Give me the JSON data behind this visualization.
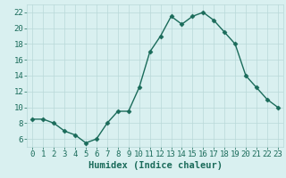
{
  "x": [
    0,
    1,
    2,
    3,
    4,
    5,
    6,
    7,
    8,
    9,
    10,
    11,
    12,
    13,
    14,
    15,
    16,
    17,
    18,
    19,
    20,
    21,
    22,
    23
  ],
  "y": [
    8.5,
    8.5,
    8.0,
    7.0,
    6.5,
    5.5,
    6.0,
    8.0,
    9.5,
    9.5,
    12.5,
    17.0,
    19.0,
    21.5,
    20.5,
    21.5,
    22.0,
    21.0,
    19.5,
    18.0,
    14.0,
    12.5,
    11.0,
    10.0
  ],
  "line_color": "#1a6b5a",
  "marker": "D",
  "marker_size": 2.5,
  "bg_color": "#d9f0f0",
  "grid_color": "#b8d8d8",
  "xlabel": "Humidex (Indice chaleur)",
  "xlim": [
    -0.5,
    23.5
  ],
  "ylim": [
    5.0,
    23.0
  ],
  "yticks": [
    6,
    8,
    10,
    12,
    14,
    16,
    18,
    20,
    22
  ],
  "xticks": [
    0,
    1,
    2,
    3,
    4,
    5,
    6,
    7,
    8,
    9,
    10,
    11,
    12,
    13,
    14,
    15,
    16,
    17,
    18,
    19,
    20,
    21,
    22,
    23
  ],
  "xlabel_fontsize": 7.5,
  "tick_fontsize": 6.5,
  "line_width": 1.0
}
